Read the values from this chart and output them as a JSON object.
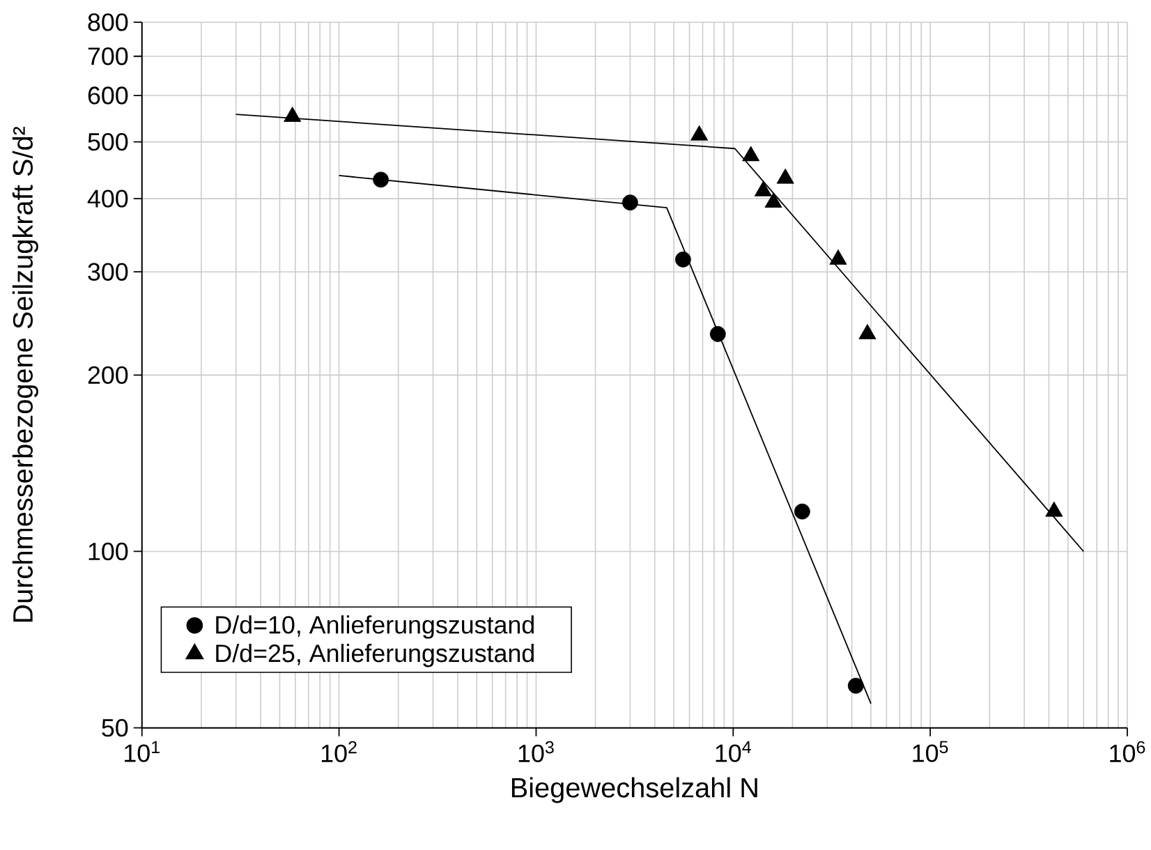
{
  "chart_data": {
    "type": "scatter",
    "xlabel": "Biegewechselzahl N",
    "ylabel": "Durchmesserbezogene Seilzugkraft S/d²",
    "log": "xy",
    "grid": true,
    "legend": "bottom left",
    "xlim": [
      10,
      1000000
    ],
    "ylim": [
      50,
      800
    ],
    "xticks": [
      {
        "value": 10,
        "label": "10$^{1}$"
      },
      {
        "value": 100,
        "label": "10$^{2}$"
      },
      {
        "value": 1000,
        "label": "10$^{3}$"
      },
      {
        "value": 10000,
        "label": "10$^{4}$"
      },
      {
        "value": 100000,
        "label": "10$^{5}$"
      },
      {
        "value": 1000000,
        "label": "10$^{6}$"
      }
    ],
    "yticks": [
      50,
      100,
      200,
      300,
      400,
      500,
      600,
      700,
      800
    ],
    "series": [
      {
        "name": "D/d=10, Anlieferungszustand",
        "marker": "circle",
        "color": "#000000",
        "x": [
          163,
          3000,
          5570,
          8360,
          22400,
          41900
        ],
        "values": [
          431,
          394,
          315,
          235,
          117,
          59
        ]
      },
      {
        "name": "D/d=25, Anlieferungszustand",
        "marker": "triangle",
        "color": "#000000",
        "x": [
          58,
          6730,
          12300,
          18400,
          14200,
          16000,
          34100,
          48000,
          425000
        ],
        "values": [
          552,
          513,
          473,
          433,
          412,
          394,
          315,
          235,
          117
        ]
      },
      {
        "type": "line",
        "marker": "none",
        "color": "#000000",
        "x": [
          100,
          4600,
          50000
        ],
        "values": [
          438,
          386,
          55
        ]
      },
      {
        "type": "line",
        "marker": "none",
        "color": "#000000",
        "x": [
          30,
          10200,
          600000
        ],
        "values": [
          557,
          487,
          100
        ]
      }
    ]
  }
}
